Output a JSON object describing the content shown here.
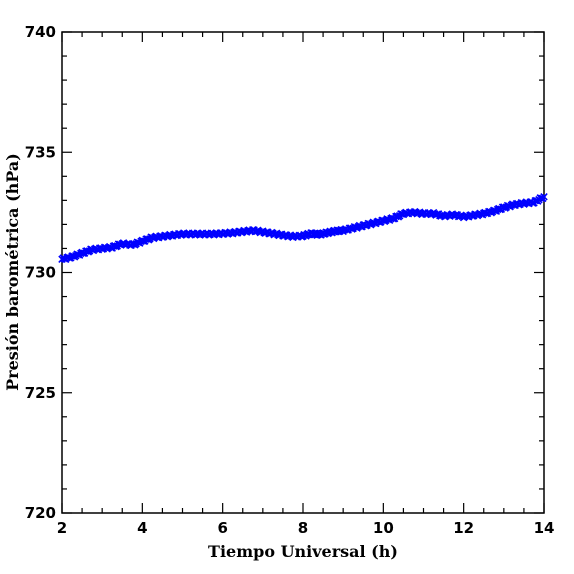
{
  "chart_data": {
    "type": "scatter",
    "title": "",
    "xlabel": "Tiempo Universal (h)",
    "ylabel": "Presión barométrica (hPa)",
    "xlim": [
      2,
      14
    ],
    "ylim": [
      720,
      740
    ],
    "xticks": [
      2,
      4,
      6,
      8,
      10,
      12,
      14
    ],
    "yticks": [
      720,
      725,
      730,
      735,
      740
    ],
    "marker": "x",
    "color": "#0000ff",
    "grid": false,
    "series": [
      {
        "name": "",
        "points": [
          [
            2.0,
            730.55
          ],
          [
            2.25,
            730.65
          ],
          [
            2.5,
            730.8
          ],
          [
            2.75,
            730.95
          ],
          [
            3.0,
            731.0
          ],
          [
            3.25,
            731.05
          ],
          [
            3.5,
            731.2
          ],
          [
            3.75,
            731.15
          ],
          [
            4.0,
            731.3
          ],
          [
            4.25,
            731.45
          ],
          [
            4.5,
            731.5
          ],
          [
            4.75,
            731.55
          ],
          [
            5.0,
            731.6
          ],
          [
            5.25,
            731.6
          ],
          [
            5.5,
            731.6
          ],
          [
            5.75,
            731.6
          ],
          [
            6.0,
            731.62
          ],
          [
            6.25,
            731.65
          ],
          [
            6.5,
            731.7
          ],
          [
            6.75,
            731.75
          ],
          [
            7.0,
            731.68
          ],
          [
            7.25,
            731.62
          ],
          [
            7.5,
            731.55
          ],
          [
            7.75,
            731.5
          ],
          [
            8.0,
            731.52
          ],
          [
            8.2,
            731.62
          ],
          [
            8.4,
            731.58
          ],
          [
            8.6,
            731.65
          ],
          [
            8.8,
            731.72
          ],
          [
            9.0,
            731.75
          ],
          [
            9.25,
            731.85
          ],
          [
            9.5,
            731.95
          ],
          [
            9.75,
            732.05
          ],
          [
            10.0,
            732.15
          ],
          [
            10.25,
            732.25
          ],
          [
            10.5,
            732.45
          ],
          [
            10.75,
            732.5
          ],
          [
            11.0,
            732.45
          ],
          [
            11.25,
            732.45
          ],
          [
            11.5,
            732.35
          ],
          [
            11.75,
            732.4
          ],
          [
            12.0,
            732.32
          ],
          [
            12.25,
            732.38
          ],
          [
            12.5,
            732.45
          ],
          [
            12.75,
            732.55
          ],
          [
            13.0,
            732.7
          ],
          [
            13.25,
            732.82
          ],
          [
            13.5,
            732.88
          ],
          [
            13.75,
            732.92
          ],
          [
            14.0,
            733.15
          ]
        ]
      }
    ]
  }
}
